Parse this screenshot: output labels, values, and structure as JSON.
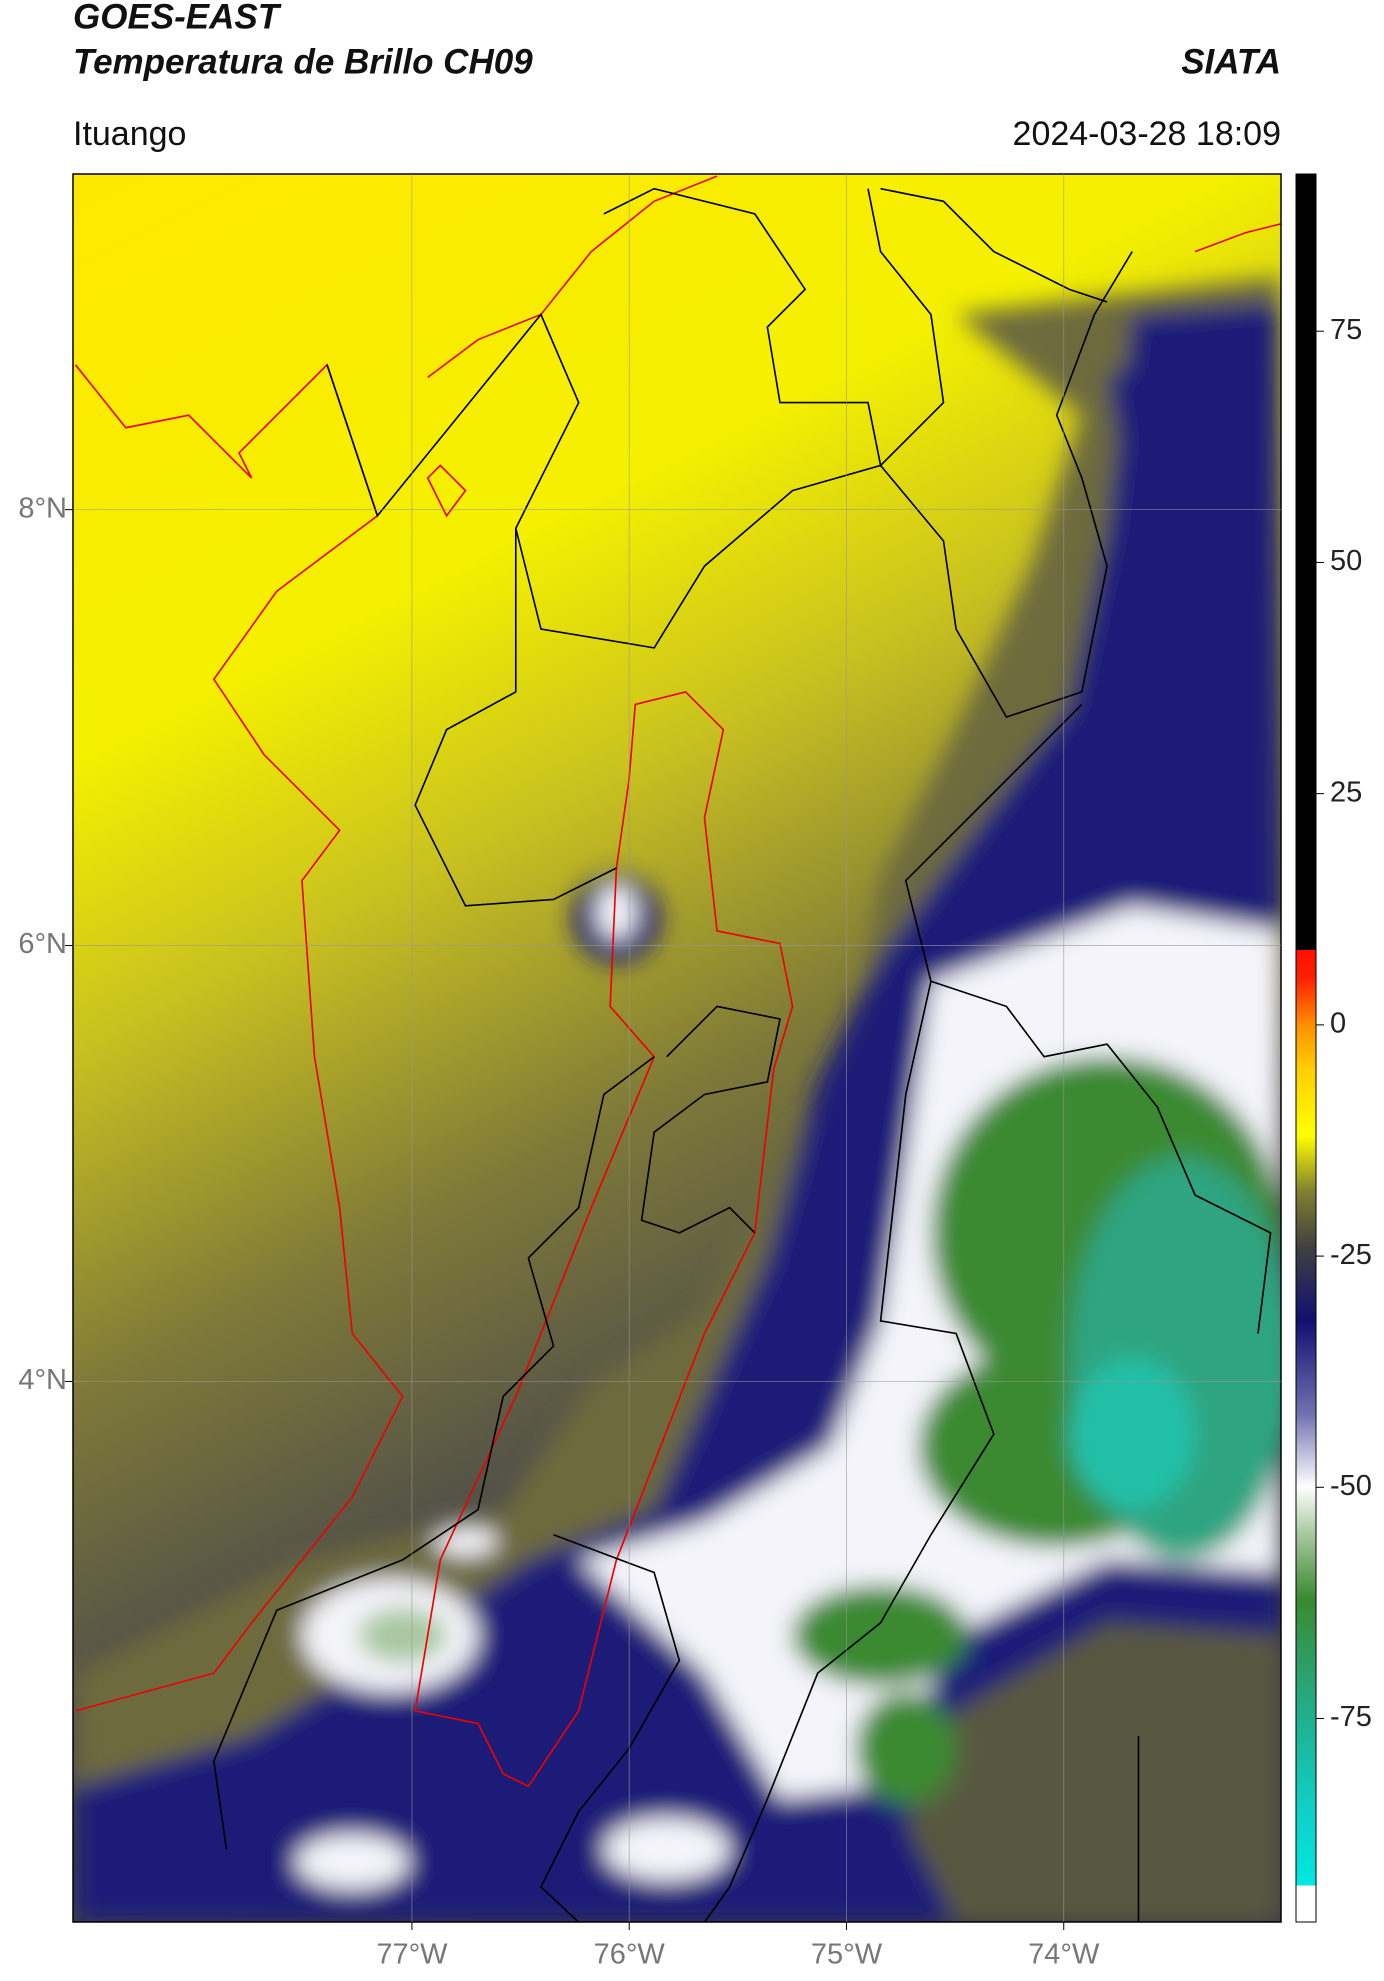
{
  "header": {
    "title": "GOES-EAST",
    "subtitle": "Temperatura de Brillo CH09",
    "source": "SIATA",
    "location": "Ituango",
    "datetime": "2024-03-28 18:09"
  },
  "chart_data": {
    "type": "map",
    "xlim": [
      -78.56,
      -73.0
    ],
    "ylim": [
      1.52,
      9.54
    ],
    "xticks": [
      {
        "value": -77,
        "label": "77°W"
      },
      {
        "value": -76,
        "label": "76°W"
      },
      {
        "value": -75,
        "label": "75°W"
      },
      {
        "value": -74,
        "label": "74°W"
      }
    ],
    "yticks": [
      {
        "value": 8,
        "label": "8°N"
      },
      {
        "value": 6,
        "label": "6°N"
      },
      {
        "value": 4,
        "label": "4°N"
      }
    ],
    "grid": true,
    "colorbar": {
      "clim": [
        -97,
        92
      ],
      "ticks": [
        75,
        50,
        25,
        0,
        -25,
        -50,
        -75
      ]
    }
  }
}
